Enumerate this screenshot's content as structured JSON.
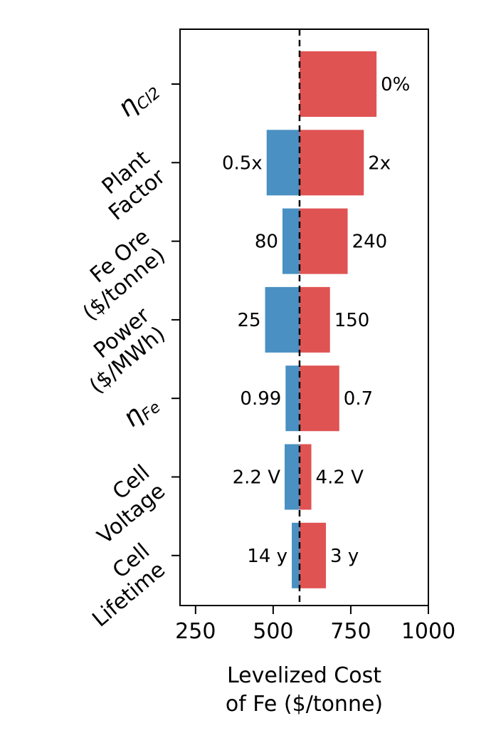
{
  "chart_data": {
    "type": "bar",
    "orientation": "horizontal",
    "chart_subtype": "tornado",
    "baseline": 585,
    "baseline_style": "dashed",
    "xlim": [
      200,
      1000
    ],
    "xticks": [
      250,
      500,
      750,
      1000
    ],
    "xtick_labels": [
      "250",
      "500",
      "750",
      "1000"
    ],
    "xlabel": [
      "Levelized Cost",
      "of Fe ($/tonne)"
    ],
    "colors": {
      "low": "#4a90c2",
      "high": "#e05353"
    },
    "categories": [
      {
        "label": [
          "η_Cl2"
        ],
        "low": null,
        "high": 833,
        "low_label": "",
        "high_label": "0%",
        "math": true,
        "sub": "Cl2"
      },
      {
        "label": [
          "Plant",
          "Factor"
        ],
        "low": 479,
        "high": 792,
        "low_label": "0.5x",
        "high_label": "2x"
      },
      {
        "label": [
          "Fe Ore",
          "($/tonne)"
        ],
        "low": 530,
        "high": 740,
        "low_label": "80",
        "high_label": "240"
      },
      {
        "label": [
          "Power",
          "($/MWh)"
        ],
        "low": 474,
        "high": 683,
        "low_label": "25",
        "high_label": "150"
      },
      {
        "label": [
          "η_Fe"
        ],
        "low": 540,
        "high": 713,
        "low_label": "0.99",
        "high_label": "0.7",
        "math": true,
        "sub": "Fe"
      },
      {
        "label": [
          "Cell",
          "Voltage"
        ],
        "low": 537,
        "high": 623,
        "low_label": "2.2 V",
        "high_label": "4.2 V"
      },
      {
        "label": [
          "Cell",
          "Lifetime"
        ],
        "low": 560,
        "high": 670,
        "low_label": "14 y",
        "high_label": "3 y"
      }
    ]
  }
}
